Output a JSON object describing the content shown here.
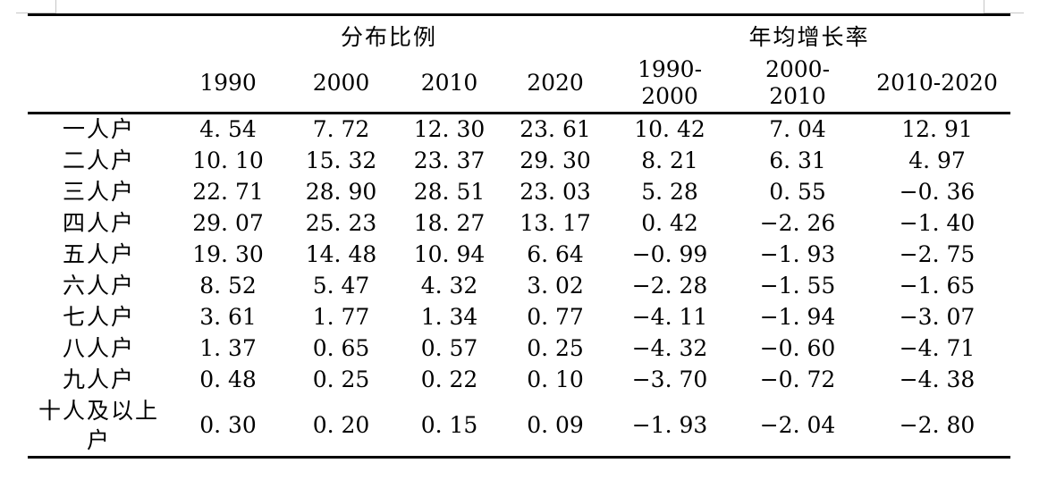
{
  "colors": {
    "background": "#ffffff",
    "text": "#000000",
    "rule": "#000000",
    "corner_mark": "#c6c6c6"
  },
  "table": {
    "group_headers": [
      {
        "label": "分布比例",
        "span": 4
      },
      {
        "label": "年均增长率",
        "span": 3
      }
    ],
    "column_headers": [
      "1990",
      "2000",
      "2010",
      "2020",
      "1990-\n2000",
      "2000-\n2010",
      "2010-2020"
    ],
    "rows": [
      {
        "label": "一人户",
        "values": [
          "4. 54",
          "7. 72",
          "12. 30",
          "23. 61",
          "10. 42",
          "7. 04",
          "12. 91"
        ]
      },
      {
        "label": "二人户",
        "values": [
          "10. 10",
          "15. 32",
          "23. 37",
          "29. 30",
          "8. 21",
          "6. 31",
          "4. 97"
        ]
      },
      {
        "label": "三人户",
        "values": [
          "22. 71",
          "28. 90",
          "28. 51",
          "23. 03",
          "5. 28",
          "0. 55",
          "−0. 36"
        ]
      },
      {
        "label": "四人户",
        "values": [
          "29. 07",
          "25. 23",
          "18. 27",
          "13. 17",
          "0. 42",
          "−2. 26",
          "−1. 40"
        ]
      },
      {
        "label": "五人户",
        "values": [
          "19. 30",
          "14. 48",
          "10. 94",
          "6. 64",
          "−0. 99",
          "−1. 93",
          "−2. 75"
        ]
      },
      {
        "label": "六人户",
        "values": [
          "8. 52",
          "5. 47",
          "4. 32",
          "3. 02",
          "−2. 28",
          "−1. 55",
          "−1. 65"
        ]
      },
      {
        "label": "七人户",
        "values": [
          "3. 61",
          "1. 77",
          "1. 34",
          "0. 77",
          "−4. 11",
          "−1. 94",
          "−3. 07"
        ]
      },
      {
        "label": "八人户",
        "values": [
          "1. 37",
          "0. 65",
          "0. 57",
          "0. 25",
          "−4. 32",
          "−0. 60",
          "−4. 71"
        ]
      },
      {
        "label": "九人户",
        "values": [
          "0. 48",
          "0. 25",
          "0. 22",
          "0. 10",
          "−3. 70",
          "−0. 72",
          "−4. 38"
        ]
      },
      {
        "label": "十人及以上\n户",
        "values": [
          "0. 30",
          "0. 20",
          "0. 15",
          "0. 09",
          "−1. 93",
          "−2. 04",
          "−2. 80"
        ]
      }
    ]
  }
}
